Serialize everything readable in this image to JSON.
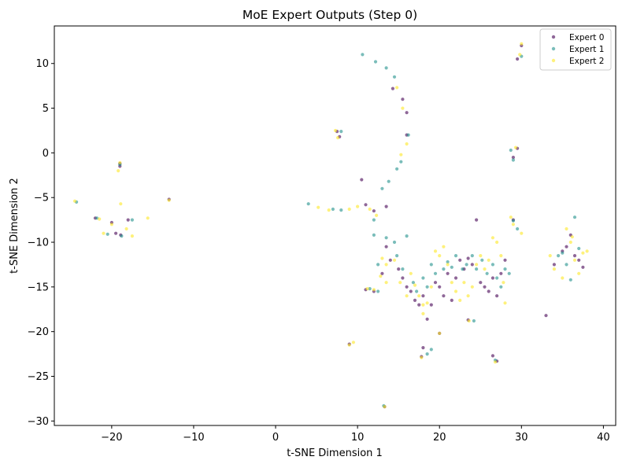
{
  "chart_data": {
    "type": "scatter",
    "title": "MoE Expert Outputs (Step 0)",
    "xlabel": "t-SNE Dimension 1",
    "ylabel": "t-SNE Dimension 2",
    "xlim": [
      -27,
      41.5
    ],
    "ylim": [
      -30.5,
      14.2
    ],
    "xticks": [
      -20,
      -10,
      0,
      10,
      20,
      30,
      40
    ],
    "yticks": [
      -30,
      -25,
      -20,
      -15,
      -10,
      -5,
      0,
      5,
      10
    ],
    "grid": false,
    "legend_position": "top-right",
    "series": [
      {
        "name": "Expert 0",
        "color": "#440154",
        "points": [
          [
            -19,
            -1.2
          ],
          [
            -19,
            -1.5
          ],
          [
            -18.9,
            -9.2
          ],
          [
            -19.5,
            -9
          ],
          [
            -18,
            -7.5
          ],
          [
            -20,
            -7.8
          ],
          [
            -22,
            -7.3
          ],
          [
            -13,
            -5.2
          ],
          [
            10.5,
            -3
          ],
          [
            11,
            -5.8
          ],
          [
            12,
            -6.5
          ],
          [
            13.5,
            -6
          ],
          [
            14.3,
            7.2
          ],
          [
            15.5,
            6
          ],
          [
            16,
            4.5
          ],
          [
            16,
            2
          ],
          [
            7.5,
            2.4
          ],
          [
            7.8,
            1.8
          ],
          [
            13.5,
            -10.5
          ],
          [
            14,
            -12
          ],
          [
            13,
            -13.5
          ],
          [
            15,
            -13
          ],
          [
            15.5,
            -14
          ],
          [
            16,
            -15
          ],
          [
            16.5,
            -15.5
          ],
          [
            17,
            -16.5
          ],
          [
            17.5,
            -17
          ],
          [
            18,
            -16
          ],
          [
            18.5,
            -18.6
          ],
          [
            19,
            -17
          ],
          [
            19.5,
            -14.5
          ],
          [
            20,
            -15
          ],
          [
            20.5,
            -16
          ],
          [
            21,
            -13.5
          ],
          [
            21.5,
            -16.5
          ],
          [
            22,
            -14
          ],
          [
            22.5,
            -12
          ],
          [
            23,
            -13
          ],
          [
            23.5,
            -11.8
          ],
          [
            24,
            -12.5
          ],
          [
            24.5,
            -7.5
          ],
          [
            25,
            -14.5
          ],
          [
            25.5,
            -15
          ],
          [
            26,
            -15.5
          ],
          [
            26.5,
            -14
          ],
          [
            27,
            -16
          ],
          [
            27.5,
            -13.5
          ],
          [
            28,
            -12
          ],
          [
            26.5,
            -22.7
          ],
          [
            27,
            -23.3
          ],
          [
            23.5,
            -18.7
          ],
          [
            29,
            -0.5
          ],
          [
            29.5,
            0.5
          ],
          [
            29.5,
            10.5
          ],
          [
            30,
            12
          ],
          [
            29,
            -7.5
          ],
          [
            11,
            -15.3
          ],
          [
            12,
            -15.5
          ],
          [
            33,
            -18.2
          ],
          [
            34,
            -12.5
          ],
          [
            35,
            -11
          ],
          [
            35.5,
            -10.5
          ],
          [
            36,
            -9.2
          ],
          [
            36.5,
            -11.5
          ],
          [
            37,
            -12
          ],
          [
            37.5,
            -12.8
          ],
          [
            18,
            -21.8
          ],
          [
            20,
            -20.2
          ],
          [
            9,
            -21.4
          ],
          [
            13.3,
            -28.4
          ],
          [
            17.8,
            -22.8
          ]
        ]
      },
      {
        "name": "Expert 1",
        "color": "#21918c",
        "points": [
          [
            -19,
            -1.3
          ],
          [
            -18.8,
            -9.3
          ],
          [
            -20.5,
            -9.1
          ],
          [
            -17.5,
            -7.5
          ],
          [
            -24.3,
            -5.5
          ],
          [
            -21.8,
            -7.3
          ],
          [
            10.6,
            11
          ],
          [
            12.2,
            10.2
          ],
          [
            13.5,
            9.5
          ],
          [
            14.5,
            8.5
          ],
          [
            4,
            -5.7
          ],
          [
            7,
            -6.3
          ],
          [
            8,
            -6.4
          ],
          [
            8,
            2.4
          ],
          [
            12,
            -7.5
          ],
          [
            13,
            -4
          ],
          [
            13.8,
            -3.2
          ],
          [
            14.8,
            -1.8
          ],
          [
            15.3,
            -1
          ],
          [
            16.2,
            2
          ],
          [
            12,
            -9.2
          ],
          [
            13.5,
            -9.5
          ],
          [
            14.5,
            -10
          ],
          [
            16,
            -9.3
          ],
          [
            12.5,
            -12.5
          ],
          [
            14.8,
            -11.5
          ],
          [
            15.5,
            -13
          ],
          [
            16.8,
            -14.5
          ],
          [
            17.2,
            -15.5
          ],
          [
            18,
            -14
          ],
          [
            18.5,
            -15
          ],
          [
            19,
            -12.5
          ],
          [
            19.5,
            -13.5
          ],
          [
            20.5,
            -13
          ],
          [
            21,
            -12.2
          ],
          [
            21.5,
            -12.8
          ],
          [
            22,
            -11.5
          ],
          [
            22.8,
            -13
          ],
          [
            23.3,
            -12.5
          ],
          [
            24,
            -11.5
          ],
          [
            24.5,
            -13
          ],
          [
            25.2,
            -12
          ],
          [
            25.8,
            -13.5
          ],
          [
            26.5,
            -12.5
          ],
          [
            27,
            -14
          ],
          [
            27.5,
            -15
          ],
          [
            28,
            -13
          ],
          [
            28.5,
            -13.5
          ],
          [
            19,
            -22
          ],
          [
            18.5,
            -22.5
          ],
          [
            28.7,
            0.3
          ],
          [
            29,
            -0.8
          ],
          [
            30,
            10.8
          ],
          [
            29,
            -7.6
          ],
          [
            29.5,
            -8.5
          ],
          [
            34.5,
            -11.5
          ],
          [
            35.5,
            -12.5
          ],
          [
            36,
            -14.2
          ],
          [
            36.5,
            -7.2
          ],
          [
            37,
            -10.7
          ],
          [
            35,
            -11.2
          ],
          [
            13.2,
            -28.3
          ],
          [
            12.5,
            -15.5
          ],
          [
            11.5,
            -15.2
          ],
          [
            24.2,
            -18.8
          ],
          [
            26.8,
            -23.2
          ]
        ]
      },
      {
        "name": "Expert 2",
        "color": "#fde725",
        "points": [
          [
            -19,
            -1.1
          ],
          [
            -19.2,
            -2
          ],
          [
            -18.9,
            -5.7
          ],
          [
            -24.5,
            -5.4
          ],
          [
            -21.5,
            -7.4
          ],
          [
            -20,
            -8
          ],
          [
            -21,
            -9
          ],
          [
            -17.5,
            -9.3
          ],
          [
            -15.6,
            -7.3
          ],
          [
            -18.2,
            -8.5
          ],
          [
            -13,
            -5.3
          ],
          [
            7.3,
            2.5
          ],
          [
            7.6,
            1.7
          ],
          [
            5.2,
            -6.1
          ],
          [
            6.5,
            -6.4
          ],
          [
            9,
            -6.3
          ],
          [
            10,
            -6
          ],
          [
            11.5,
            -6.3
          ],
          [
            12.3,
            -7
          ],
          [
            14.8,
            7.3
          ],
          [
            15.5,
            5
          ],
          [
            16,
            1
          ],
          [
            15.3,
            -0.2
          ],
          [
            13,
            -11.8
          ],
          [
            13.5,
            -12.5
          ],
          [
            12.8,
            -13.8
          ],
          [
            13.5,
            -14.5
          ],
          [
            14.5,
            -12
          ],
          [
            15.2,
            -14.5
          ],
          [
            16.5,
            -13.5
          ],
          [
            17,
            -14.8
          ],
          [
            17.5,
            -16
          ],
          [
            18,
            -17
          ],
          [
            18.5,
            -16.8
          ],
          [
            19.5,
            -11
          ],
          [
            20,
            -11.5
          ],
          [
            20.5,
            -10.5
          ],
          [
            21,
            -12.5
          ],
          [
            21.5,
            -14.5
          ],
          [
            22,
            -15.5
          ],
          [
            22.5,
            -16.5
          ],
          [
            23,
            -14.5
          ],
          [
            23.5,
            -16
          ],
          [
            24,
            -15
          ],
          [
            24.5,
            -12.5
          ],
          [
            25,
            -11.5
          ],
          [
            25.5,
            -13
          ],
          [
            26,
            -12
          ],
          [
            26.5,
            -9.5
          ],
          [
            27,
            -10
          ],
          [
            27.5,
            -11.5
          ],
          [
            28,
            -16.8
          ],
          [
            27.8,
            -14.5
          ],
          [
            28.7,
            -7.2
          ],
          [
            29.3,
            0.6
          ],
          [
            30,
            12.2
          ],
          [
            29.8,
            11
          ],
          [
            29,
            -8
          ],
          [
            30,
            -9
          ],
          [
            33.5,
            -11.5
          ],
          [
            34,
            -13
          ],
          [
            35,
            -14
          ],
          [
            35.5,
            -8.5
          ],
          [
            36,
            -10
          ],
          [
            36.5,
            -12
          ],
          [
            37,
            -13.5
          ],
          [
            37.5,
            -11.2
          ],
          [
            38,
            -11
          ],
          [
            36.2,
            -9.4
          ],
          [
            9,
            -21.5
          ],
          [
            9.5,
            -21.2
          ],
          [
            17.8,
            -22.9
          ],
          [
            13.3,
            -28.4
          ],
          [
            26.8,
            -23.4
          ],
          [
            23.6,
            -18.8
          ],
          [
            20,
            -20.2
          ],
          [
            11.2,
            -15.2
          ],
          [
            12,
            -15.3
          ],
          [
            16,
            -16
          ],
          [
            18,
            -18
          ],
          [
            19,
            -15
          ]
        ]
      }
    ]
  }
}
